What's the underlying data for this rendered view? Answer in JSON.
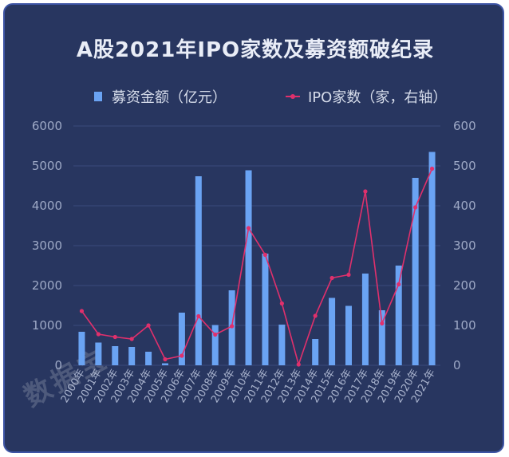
{
  "chart_data": {
    "type": "bar",
    "title": "A股2021年IPO家数及募资额破纪录",
    "categories": [
      "2000年",
      "2001年",
      "2002年",
      "2003年",
      "2004年",
      "2005年",
      "2006年",
      "2007年",
      "2008年",
      "2009年",
      "2010年",
      "2011年",
      "2012年",
      "2013年",
      "2014年",
      "2015年",
      "2016年",
      "2017年",
      "2018年",
      "2019年",
      "2020年",
      "2021年"
    ],
    "series": [
      {
        "name": "募资金额（亿元）",
        "type": "bar",
        "axis": "left",
        "values": [
          840,
          570,
          480,
          460,
          340,
          50,
          1320,
          4740,
          1010,
          1880,
          4890,
          2800,
          1020,
          0,
          660,
          1690,
          1490,
          2300,
          1380,
          2500,
          4700,
          5350
        ]
      },
      {
        "name": "IPO家数（家，右轴）",
        "type": "line",
        "axis": "right",
        "values": [
          136,
          78,
          71,
          66,
          100,
          15,
          24,
          123,
          77,
          98,
          344,
          277,
          155,
          2,
          124,
          219,
          227,
          436,
          105,
          203,
          396,
          493
        ]
      }
    ],
    "ylim_left": [
      0,
      6000
    ],
    "ylim_right": [
      0,
      600
    ],
    "yticks_left": [
      "0",
      "1000",
      "2000",
      "3000",
      "4000",
      "5000",
      "6000"
    ],
    "yticks_right": [
      "0",
      "100",
      "200",
      "300",
      "400",
      "500",
      "600"
    ],
    "grid": true,
    "legend_placement": "top-center"
  },
  "watermark": "数据宝",
  "colors": {
    "bar": "#6aa3f3",
    "line": "#e0306c",
    "background": "#283660",
    "border": "#3e55a6"
  }
}
